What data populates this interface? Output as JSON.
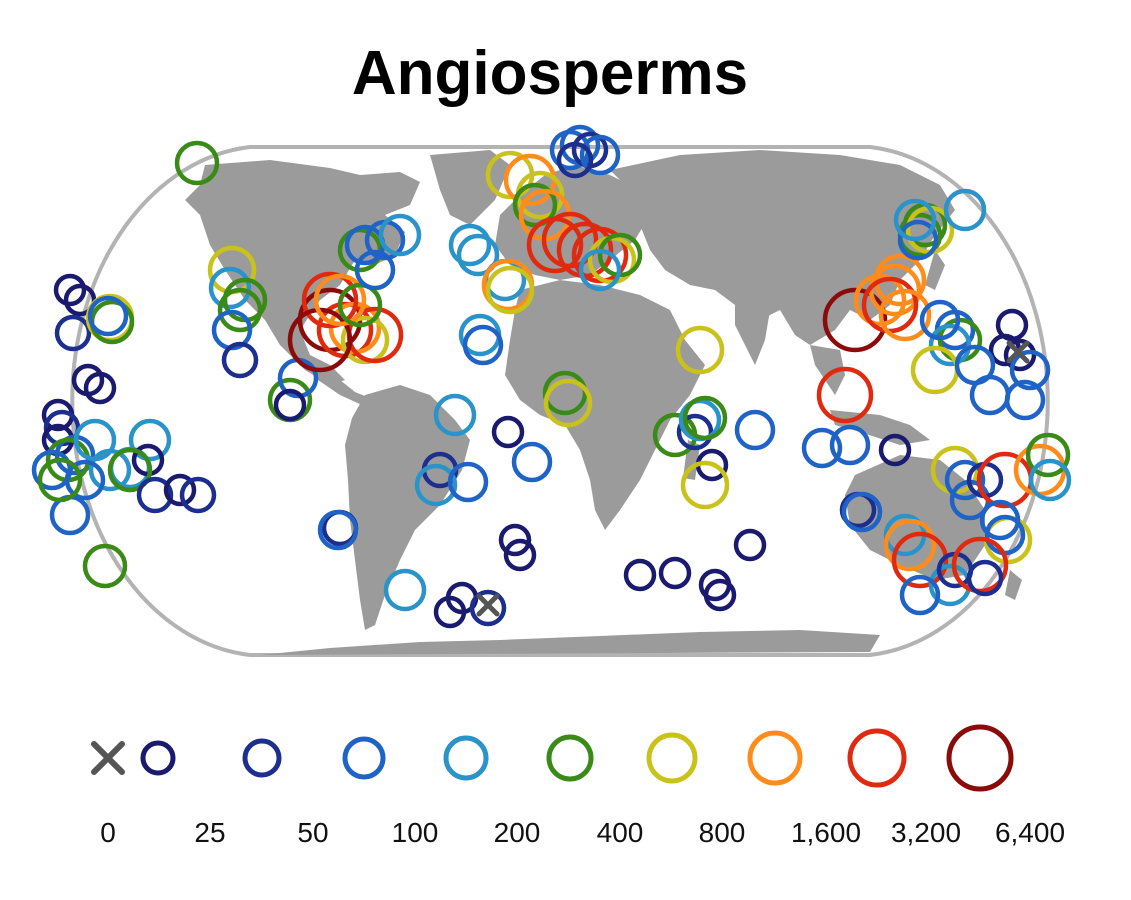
{
  "title": "Angiosperms",
  "legend": {
    "classes": [
      {
        "label": "0",
        "color": "#555555",
        "marker": "x"
      },
      {
        "label": "25",
        "color": "#1a1a6e",
        "marker": "circle"
      },
      {
        "label": "50",
        "color": "#1c2f8f",
        "marker": "circle"
      },
      {
        "label": "100",
        "color": "#1f63c6",
        "marker": "circle"
      },
      {
        "label": "200",
        "color": "#2a93c9",
        "marker": "circle"
      },
      {
        "label": "400",
        "color": "#3a8a17",
        "marker": "circle"
      },
      {
        "label": "800",
        "color": "#c9c21a",
        "marker": "circle"
      },
      {
        "label": "1,600",
        "color": "#ff8c1a",
        "marker": "circle"
      },
      {
        "label": "3,200",
        "color": "#e02a10",
        "marker": "circle"
      },
      {
        "label": "6,400",
        "color": "#8b0a0a",
        "marker": "circle"
      }
    ]
  },
  "map": {
    "projection": "Eckert IV (equal-area)",
    "land_color": "#9b9b9b",
    "frame_color": "#b3b3b3",
    "gridlines": false
  }
}
